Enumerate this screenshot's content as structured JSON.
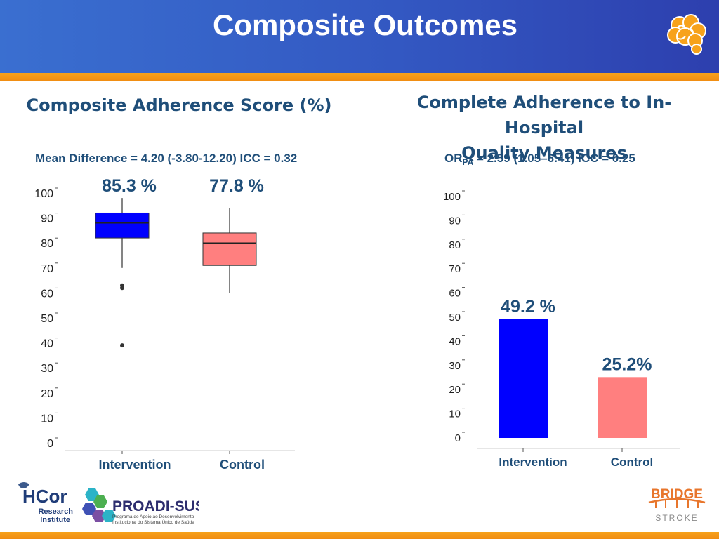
{
  "slide": {
    "title": "Composite Outcomes"
  },
  "left_panel": {
    "title": "Composite Adherence Score (%)",
    "stat_text": "Mean Difference = 4.20 (-3.80-12.20) ICC =  0.32"
  },
  "right_panel": {
    "title_line1": "Complete Adherence to In-Hospital",
    "title_line2": "Quality Measures",
    "stat_or": "OR",
    "stat_sub": "PA",
    "stat_rest": " = 2.59 (1.05–6.41) ICC =  0.25"
  },
  "chart_data": [
    {
      "type": "box",
      "title": "Composite Adherence Score (%)",
      "categories": [
        "Intervention",
        "Control"
      ],
      "value_labels": [
        "85.3 %",
        "77.8 %"
      ],
      "boxes": [
        {
          "category": "Intervention",
          "whisker_low": 70,
          "q1": 82,
          "median": 88,
          "q3": 92,
          "whisker_high": 98,
          "outliers": [
            63,
            62,
            39
          ],
          "color": "#0000ff"
        },
        {
          "category": "Control",
          "whisker_low": 60,
          "q1": 71,
          "median": 80,
          "q3": 84,
          "whisker_high": 94,
          "outliers": [],
          "color": "#ff7f7f"
        }
      ],
      "y_ticks": [
        "0",
        "10",
        "20",
        "30",
        "40",
        "50",
        "60",
        "70",
        "80",
        "90",
        "100"
      ],
      "ylim": [
        0,
        100
      ],
      "grid": false
    },
    {
      "type": "bar",
      "title": "Complete Adherence to In-Hospital Quality Measures",
      "categories": [
        "Intervention",
        "Control"
      ],
      "values": [
        49.2,
        25.2
      ],
      "value_labels": [
        "49.2 %",
        "25.2%"
      ],
      "colors": [
        "#0000ff",
        "#ff7f7f"
      ],
      "y_ticks": [
        "0",
        "10",
        "20",
        "30",
        "40",
        "50",
        "60",
        "70",
        "80",
        "90",
        "100"
      ],
      "ylim": [
        0,
        100
      ],
      "grid": false
    }
  ],
  "logos": {
    "hcor_name": "HCor",
    "hcor_sub1": "Research",
    "hcor_sub2": "Institute",
    "proadi_name": "PROADI-SUS",
    "proadi_sub1": "Programa de Apoio ao Desenvolvimento",
    "proadi_sub2": "Institucional do Sistema Único de Saúde",
    "bridge_name": "BRIDGE",
    "bridge_sub": "STROKE"
  },
  "colors": {
    "header_blue": "#3358c2",
    "accent_orange": "#f7a21b",
    "title_navy": "#1f4e79",
    "intervention": "#0000ff",
    "control": "#ff7f7f"
  }
}
